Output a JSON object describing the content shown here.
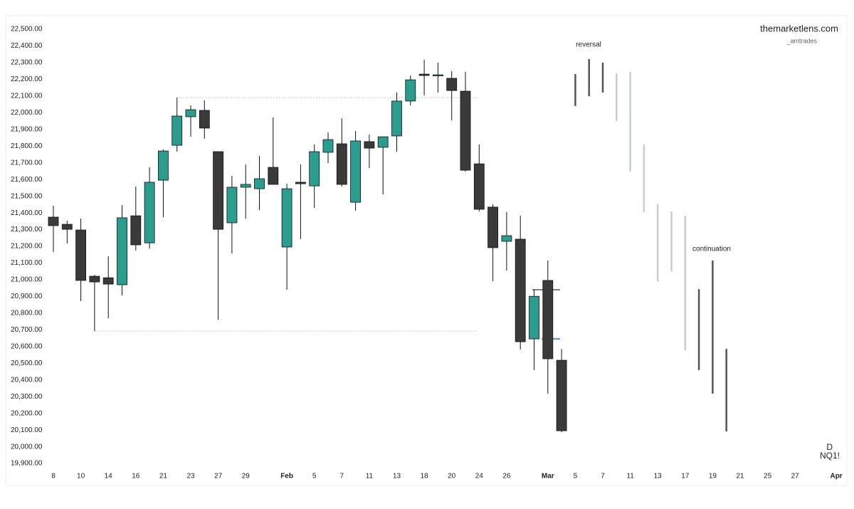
{
  "chart_data": {
    "type": "candlestick",
    "watermark": "themarketlens.com",
    "watermark_sub": "_amtrades",
    "interval": "D",
    "symbol": "NQ1!",
    "annotations": [
      "reversal",
      "continuation"
    ],
    "categories": [
      "8",
      null,
      "10",
      null,
      "14",
      null,
      "16",
      null,
      "21",
      null,
      "23",
      null,
      "27",
      null,
      "29",
      null,
      null,
      "Feb",
      null,
      "5",
      null,
      "7",
      null,
      "11",
      null,
      "13",
      null,
      "18",
      null,
      "20",
      null,
      "24",
      null,
      "26",
      null,
      null,
      "Mar",
      null,
      "5",
      null,
      "7",
      null,
      "11",
      null,
      "13",
      null,
      "17",
      null,
      "19",
      null,
      "21",
      null,
      "25",
      null,
      "27",
      null,
      null,
      "Apr"
    ],
    "open": [
      21375,
      21332,
      21298,
      21021,
      21012,
      20970,
      21383,
      21221,
      21596,
      21805,
      21976,
      22014,
      21767,
      21341,
      21554,
      21545,
      21673,
      21196,
      21584,
      21562,
      21763,
      21814,
      21464,
      21827,
      21793,
      21861,
      22070,
      22231,
      22223,
      22206,
      22129,
      21694,
      21435,
      21230,
      21243,
      20646,
      20996,
      20518,
      null,
      null,
      null,
      null,
      null,
      null,
      null,
      null,
      null,
      null,
      null,
      null,
      null,
      null,
      null,
      null,
      null,
      null,
      null,
      null
    ],
    "high": [
      21443,
      21354,
      21366,
      21030,
      21140,
      21447,
      21558,
      21673,
      21780,
      22091,
      22044,
      22074,
      21767,
      21622,
      21690,
      21741,
      21972,
      21575,
      21690,
      21810,
      21882,
      21967,
      21891,
      21869,
      21856,
      22121,
      22223,
      22317,
      22300,
      22249,
      22244,
      21810,
      21452,
      21405,
      21383,
      20940,
      21115,
      20586,
      null,
      null,
      null,
      null,
      null,
      null,
      null,
      null,
      null,
      null,
      null,
      null,
      null,
      null,
      null,
      null,
      null,
      null,
      null,
      null
    ],
    "low": [
      21166,
      21217,
      20872,
      20693,
      20770,
      20906,
      21175,
      21187,
      21375,
      21767,
      21856,
      21844,
      20761,
      21157,
      21366,
      21417,
      21571,
      20940,
      21243,
      21430,
      21699,
      21558,
      21413,
      21669,
      21511,
      21767,
      22044,
      22104,
      22121,
      21954,
      21648,
      21409,
      20991,
      21055,
      20582,
      20459,
      20318,
      20088,
      null,
      null,
      null,
      null,
      null,
      null,
      null,
      null,
      null,
      null,
      null,
      null,
      null,
      null,
      null,
      null,
      null,
      null,
      null,
      null
    ],
    "close": [
      21324,
      21302,
      20996,
      20987,
      20974,
      21371,
      21209,
      21584,
      21771,
      21980,
      22018,
      21908,
      21302,
      21554,
      21571,
      21605,
      21571,
      21545,
      21575,
      21767,
      21839,
      21571,
      21831,
      21788,
      21856,
      22070,
      22197,
      22223,
      22227,
      22133,
      21656,
      21422,
      21192,
      21264,
      20629,
      20901,
      20527,
      20096,
      null,
      null,
      null,
      null,
      null,
      null,
      null,
      null,
      null,
      null,
      null,
      null,
      null,
      null,
      null,
      null,
      null,
      null,
      null,
      null
    ],
    "up_color": "#2a9d8f",
    "down_color": "#3a3a3a",
    "projection_high": [
      null,
      null,
      null,
      null,
      null,
      null,
      null,
      null,
      null,
      null,
      null,
      null,
      null,
      null,
      null,
      null,
      null,
      null,
      null,
      null,
      null,
      null,
      null,
      null,
      null,
      null,
      null,
      null,
      null,
      null,
      null,
      null,
      null,
      null,
      null,
      null,
      null,
      null,
      22231,
      22321,
      22300,
      22236,
      22244,
      21810,
      21452,
      21409,
      21383,
      20944,
      21115,
      20586,
      null,
      null,
      null,
      null,
      null,
      null,
      null,
      null
    ],
    "projection_low": [
      null,
      null,
      null,
      null,
      null,
      null,
      null,
      null,
      null,
      null,
      null,
      null,
      null,
      null,
      null,
      null,
      null,
      null,
      null,
      null,
      null,
      null,
      null,
      null,
      null,
      null,
      null,
      null,
      null,
      null,
      null,
      null,
      null,
      null,
      null,
      null,
      null,
      null,
      22040,
      22099,
      22121,
      21950,
      21648,
      21405,
      20991,
      21051,
      20578,
      20459,
      20318,
      20092,
      null,
      null,
      null,
      null,
      null,
      null,
      null,
      null
    ],
    "projection_colors": [
      null,
      null,
      null,
      null,
      null,
      null,
      null,
      null,
      null,
      null,
      null,
      null,
      null,
      null,
      null,
      null,
      null,
      null,
      null,
      null,
      null,
      null,
      null,
      null,
      null,
      null,
      null,
      null,
      null,
      null,
      null,
      null,
      null,
      null,
      null,
      null,
      null,
      null,
      "#555555",
      "#555555",
      "#555555",
      "#c9ccd4",
      "#c9ccd4",
      "#c9ccd4",
      "#c9ccd4",
      "#c9ccd4",
      "#c9ccd4",
      "#555555",
      "#555555",
      "#555555",
      null,
      null,
      null,
      null,
      null,
      null,
      null,
      null
    ],
    "levels": [
      {
        "value": 22091,
        "color": "#c4c6cc",
        "dashed": true
      },
      {
        "value": 20693,
        "color": "#c4c6cc",
        "dashed": true
      },
      {
        "value": 20940,
        "color": "#555555",
        "dashed": false
      },
      {
        "value": 20646,
        "color": "#2962ff",
        "dashed": false
      }
    ],
    "ylim": [
      19862,
      22547
    ],
    "yticks": [
      {
        "value": 19900,
        "label": "19,900.00"
      },
      {
        "value": 20000,
        "label": "20,000.00"
      },
      {
        "value": 20100,
        "label": "20,100.00"
      },
      {
        "value": 20200,
        "label": "20,200.00"
      },
      {
        "value": 20300,
        "label": "20,300.00"
      },
      {
        "value": 20400,
        "label": "20,400.00"
      },
      {
        "value": 20500,
        "label": "20,500.00"
      },
      {
        "value": 20600,
        "label": "20,600.00"
      },
      {
        "value": 20700,
        "label": "20,700.00"
      },
      {
        "value": 20800,
        "label": "20,800.00"
      },
      {
        "value": 20900,
        "label": "20,900.00"
      },
      {
        "value": 21000,
        "label": "21,000.00"
      },
      {
        "value": 21100,
        "label": "21,100.00"
      },
      {
        "value": 21200,
        "label": "21,200.00"
      },
      {
        "value": 21300,
        "label": "21,300.00"
      },
      {
        "value": 21400,
        "label": "21,400.00"
      },
      {
        "value": 21500,
        "label": "21,500.00"
      },
      {
        "value": 21600,
        "label": "21,600.00"
      },
      {
        "value": 21700,
        "label": "21,700.00"
      },
      {
        "value": 21800,
        "label": "21,800.00"
      },
      {
        "value": 21900,
        "label": "21,900.00"
      },
      {
        "value": 22000,
        "label": "22,000.00"
      },
      {
        "value": 22100,
        "label": "22,100.00"
      },
      {
        "value": 22200,
        "label": "22,200.00"
      },
      {
        "value": 22300,
        "label": "22,300.00"
      },
      {
        "value": 22400,
        "label": "22,400.00"
      },
      {
        "value": 22500,
        "label": "22,500.00"
      }
    ]
  }
}
